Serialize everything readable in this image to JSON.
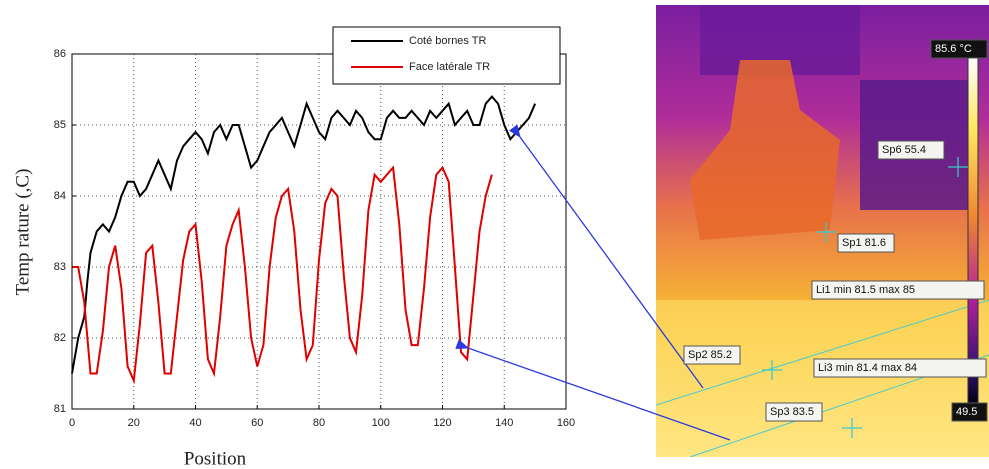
{
  "chart_data": {
    "type": "line",
    "x_label": "Position",
    "y_label": "Temp rature (,C)",
    "xlim": [
      0,
      160
    ],
    "xticks": [
      0,
      20,
      40,
      60,
      80,
      100,
      120,
      140,
      160
    ],
    "ylim": [
      81,
      86
    ],
    "yticks": [
      81,
      82,
      83,
      84,
      85,
      86
    ],
    "grid": true,
    "legend": "top-right",
    "series": [
      {
        "name": "Coté bornes TR",
        "color": "#000000",
        "x": [
          0,
          2,
          4,
          5,
          6,
          8,
          10,
          12,
          14,
          16,
          18,
          20,
          22,
          24,
          26,
          28,
          30,
          32,
          34,
          36,
          38,
          40,
          42,
          44,
          46,
          48,
          50,
          52,
          54,
          56,
          58,
          60,
          62,
          64,
          66,
          68,
          70,
          72,
          74,
          76,
          78,
          80,
          82,
          84,
          86,
          88,
          90,
          92,
          94,
          96,
          98,
          100,
          102,
          104,
          106,
          108,
          110,
          112,
          114,
          116,
          118,
          120,
          122,
          124,
          126,
          128,
          130,
          132,
          134,
          136,
          138,
          140,
          142,
          144,
          146,
          148,
          150
        ],
        "values": [
          81.5,
          82.0,
          82.3,
          82.8,
          83.2,
          83.5,
          83.6,
          83.5,
          83.7,
          84.0,
          84.2,
          84.2,
          84.0,
          84.1,
          84.3,
          84.5,
          84.3,
          84.1,
          84.5,
          84.7,
          84.8,
          84.9,
          84.8,
          84.6,
          84.9,
          85.0,
          84.8,
          85.0,
          85.0,
          84.7,
          84.4,
          84.5,
          84.7,
          84.9,
          85.0,
          85.1,
          84.9,
          84.7,
          85.0,
          85.3,
          85.1,
          84.9,
          84.8,
          85.1,
          85.2,
          85.1,
          85.0,
          85.2,
          85.1,
          84.9,
          84.8,
          84.8,
          85.1,
          85.2,
          85.1,
          85.1,
          85.2,
          85.1,
          85.0,
          85.2,
          85.1,
          85.2,
          85.3,
          85.0,
          85.1,
          85.2,
          85.0,
          85.0,
          85.3,
          85.4,
          85.3,
          85.0,
          84.8,
          84.9,
          85.0,
          85.1,
          85.3
        ]
      },
      {
        "name": "Face latérale TR",
        "color": "#e00000",
        "x": [
          0,
          2,
          4,
          6,
          8,
          10,
          12,
          14,
          16,
          18,
          20,
          22,
          24,
          26,
          28,
          30,
          32,
          34,
          36,
          38,
          40,
          42,
          44,
          46,
          48,
          50,
          52,
          54,
          56,
          58,
          60,
          62,
          64,
          66,
          68,
          70,
          72,
          74,
          76,
          78,
          80,
          82,
          84,
          86,
          88,
          90,
          92,
          94,
          96,
          98,
          100,
          102,
          104,
          106,
          108,
          110,
          112,
          114,
          116,
          118,
          120,
          122,
          124,
          126,
          128,
          130,
          132,
          134,
          136
        ],
        "values": [
          83.0,
          83.0,
          82.5,
          81.5,
          81.5,
          82.1,
          83.0,
          83.3,
          82.7,
          81.6,
          81.4,
          82.2,
          83.2,
          83.3,
          82.5,
          81.5,
          81.5,
          82.3,
          83.1,
          83.5,
          83.6,
          82.8,
          81.7,
          81.5,
          82.3,
          83.3,
          83.6,
          83.8,
          83.0,
          82.0,
          81.6,
          81.9,
          83.0,
          83.7,
          84.0,
          84.1,
          83.5,
          82.4,
          81.7,
          81.9,
          83.1,
          83.9,
          84.1,
          84.0,
          82.9,
          82.0,
          81.8,
          82.6,
          83.8,
          84.3,
          84.2,
          84.3,
          84.4,
          83.6,
          82.4,
          81.9,
          81.9,
          82.7,
          83.7,
          84.3,
          84.4,
          84.2,
          83.0,
          81.8,
          81.7,
          82.6,
          83.5,
          84.0,
          84.3
        ]
      }
    ]
  },
  "thermal_image": {
    "scale_max": "85.6 °C",
    "scale_min": "49.5",
    "spots": [
      "Sp6 55.4",
      "Sp1 81.6",
      "Li1 min 81.5 max 85",
      "Sp2 85.2",
      "Li3 min 81.4 max 84",
      "Sp3 83.5"
    ]
  }
}
